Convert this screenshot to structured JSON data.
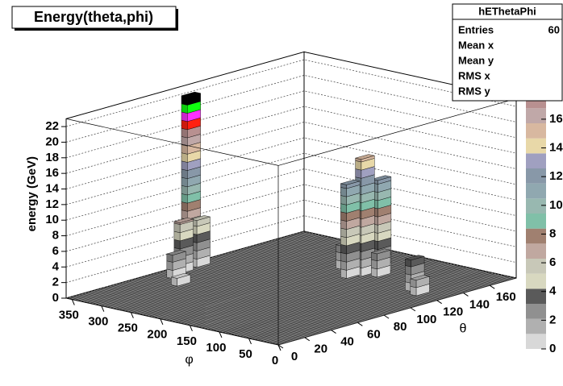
{
  "chart_data": {
    "type": "lego",
    "title": "Energy(theta,phi)",
    "zlabel": "energy (GeV)",
    "xlabel": "φ",
    "ylabel": "θ",
    "xlim": [
      0,
      360
    ],
    "xticks": [
      0,
      50,
      100,
      150,
      200,
      250,
      300,
      350
    ],
    "ylim": [
      0,
      180
    ],
    "yticks": [
      0,
      20,
      40,
      60,
      80,
      100,
      120,
      140,
      160
    ],
    "zlim": [
      0,
      23
    ],
    "zticks": [
      0,
      2,
      4,
      6,
      8,
      10,
      12,
      14,
      16,
      18,
      20,
      22
    ],
    "grid": true,
    "palette_lim": [
      0,
      22
    ],
    "palette_ticks": [
      0,
      2,
      4,
      6,
      8,
      10,
      12,
      14,
      16
    ],
    "palette": [
      "#d8d8d8",
      "#b0b0b0",
      "#909090",
      "#5a5a5a",
      "#d8d8c0",
      "#c8c8b8",
      "#c0a8a0",
      "#a08070",
      "#80c0a8",
      "#98b8b0",
      "#90a8b0",
      "#8898a8",
      "#a0a0c0",
      "#e8d8a8",
      "#d8b8a0",
      "#c0a8a8",
      "#b89090",
      "#ff2010",
      "#ff30ff",
      "#10ff10",
      "#000000"
    ],
    "x": [
      350,
      340,
      345,
      330,
      158,
      150,
      165,
      140,
      60,
      40,
      200,
      300
    ],
    "y": [
      90,
      80,
      95,
      70,
      136,
      145,
      128,
      140,
      130,
      125,
      140,
      60
    ],
    "values": [
      22,
      6.5,
      6,
      3,
      15,
      12,
      12,
      3,
      4,
      2,
      3,
      1
    ],
    "stats": {
      "title": "hEThetaPhi",
      "labels": [
        "Entries",
        "Mean x",
        "Mean y",
        "RMS x",
        "RMS y"
      ],
      "entries": 60
    }
  }
}
